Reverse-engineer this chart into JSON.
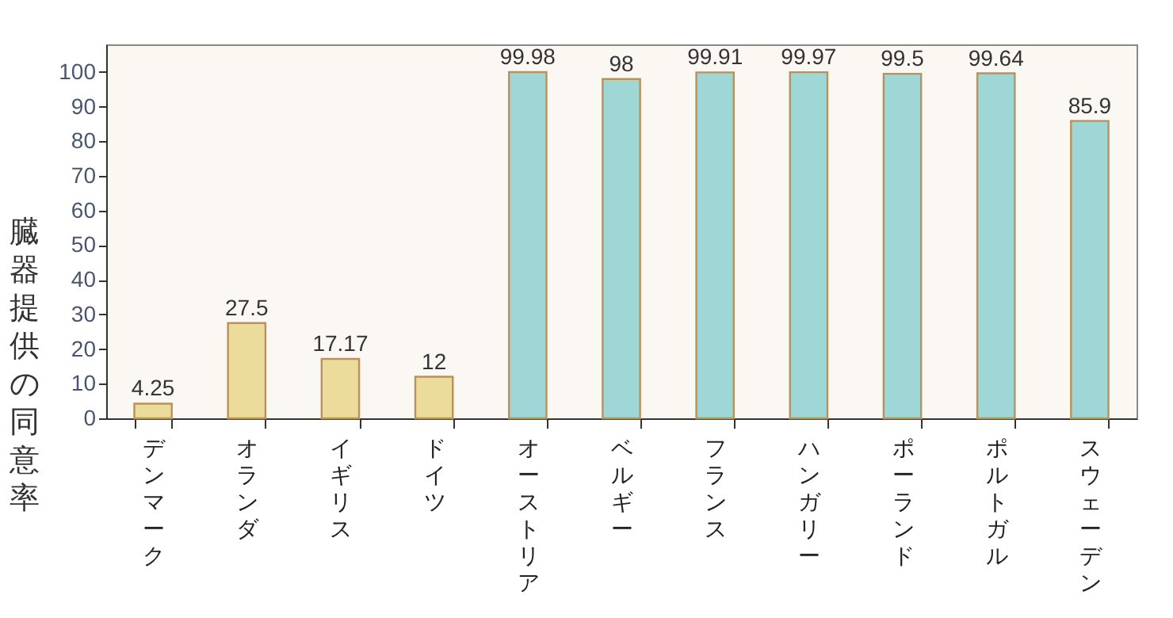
{
  "chart_data": {
    "type": "bar",
    "ylabel": "臓器提供の同意率",
    "categories": [
      "デンマーク",
      "オランダ",
      "イギリス",
      "ドイツ",
      "オーストリア",
      "ベルギー",
      "フランス",
      "ハンガリー",
      "ポーランド",
      "ポルトガル",
      "スウェーデン"
    ],
    "values": [
      4.25,
      27.5,
      17.17,
      12,
      99.98,
      98,
      99.91,
      99.97,
      99.5,
      99.64,
      85.9
    ],
    "colors": [
      "#ecdc9c",
      "#ecdc9c",
      "#ecdc9c",
      "#ecdc9c",
      "#9fd6d6",
      "#9fd6d6",
      "#9fd6d6",
      "#9fd6d6",
      "#9fd6d6",
      "#9fd6d6",
      "#9fd6d6"
    ],
    "ylim": [
      0,
      108
    ],
    "yticks": [
      0,
      10,
      20,
      30,
      40,
      50,
      60,
      70,
      80,
      90,
      100
    ],
    "data_labels": true,
    "grid": false
  }
}
